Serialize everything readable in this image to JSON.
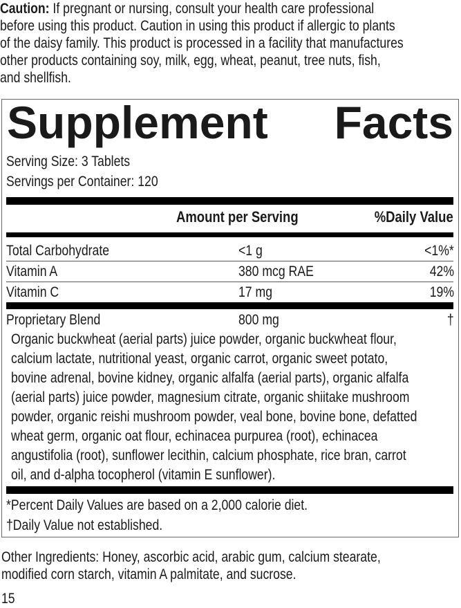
{
  "caution": {
    "label": "Caution:",
    "lines": [
      " If pregnant or nursing, consult your health care professional",
      "before using this product. Caution in using this product if allergic to plants",
      "of the daisy family. This product is processed in a facility that manufactures",
      "other products containing soy, milk, egg, wheat, peanut, tree nuts, fish,",
      "and shellfish."
    ]
  },
  "facts": {
    "title_word1": "Supplement",
    "title_word2": "Facts",
    "serving_size": "Serving Size: 3 Tablets",
    "servings_per_container": "Servings per Container: 120",
    "header_amount": "Amount per Serving",
    "header_dv": "%Daily Value",
    "rows": [
      {
        "name": "Total Carbohydrate",
        "amount": "<1 g",
        "dv": "<1%*"
      },
      {
        "name": "Vitamin A",
        "amount": "380 mcg RAE",
        "dv": "42%"
      },
      {
        "name": "Vitamin C",
        "amount": "17 mg",
        "dv": "19%"
      },
      {
        "name": "Proprietary Blend",
        "amount": "800 mg",
        "dv": "†"
      }
    ],
    "blend_lines": [
      "Organic buckwheat (aerial parts) juice powder, organic buckwheat flour,",
      "calcium lactate, nutritional yeast, organic carrot, organic sweet potato,",
      "bovine adrenal, bovine kidney, organic alfalfa (aerial parts), organic alfalfa",
      "(aerial parts) juice powder, magnesium citrate, organic shiitake mushroom",
      "powder, organic reishi mushroom powder, veal bone, bovine bone, defatted",
      "wheat germ, organic oat flour, echinacea purpurea (root), echinacea",
      "angustifolia (root), sunflower lecithin, calcium phosphate, rice bran, carrot",
      "oil, and d-alpha tocopherol (vitamin E sunflower)."
    ],
    "footnote1": "*Percent Daily Values are based on a 2,000 calorie diet.",
    "footnote2": "†Daily Value not established."
  },
  "other_ingredients": [
    "Other Ingredients: Honey, ascorbic acid, arabic gum, calcium stearate,",
    "modified corn starch, vitamin A palmitate, and sucrose."
  ],
  "page_number": "15"
}
